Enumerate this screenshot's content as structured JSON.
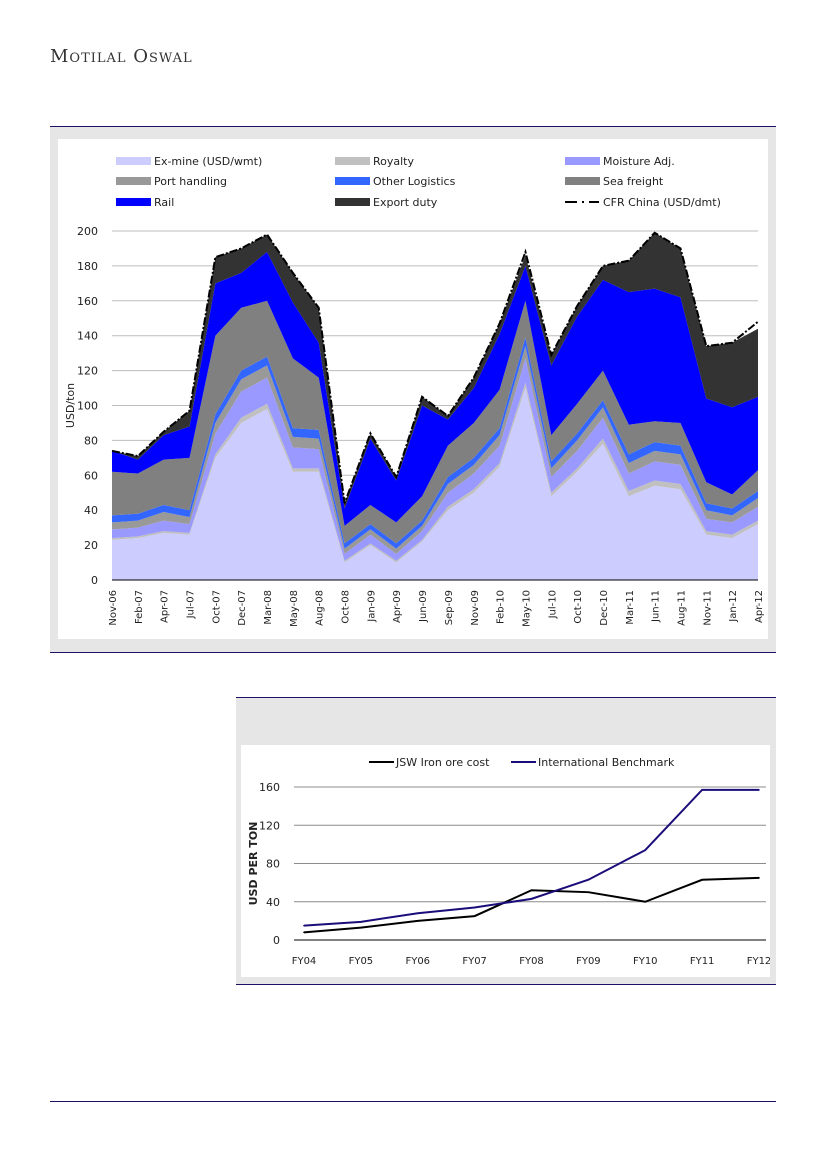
{
  "header": {
    "brand": "Motilal Oswal"
  },
  "chart_data": [
    {
      "type": "area",
      "stacked": true,
      "title": "",
      "xlabel": "",
      "ylabel": "USD/ton",
      "ylim": [
        0,
        200
      ],
      "yticks": [
        0,
        20,
        40,
        60,
        80,
        100,
        120,
        140,
        160,
        180,
        200
      ],
      "grid": true,
      "legend_position": "top",
      "x_tick_labels": [
        "Nov-06",
        "Feb-07",
        "Apr-07",
        "Jul-07",
        "Oct-07",
        "Dec-07",
        "Mar-08",
        "May-08",
        "Aug-08",
        "Oct-08",
        "Jan-09",
        "Apr-09",
        "Jun-09",
        "Sep-09",
        "Nov-09",
        "Feb-10",
        "May-10",
        "Jul-10",
        "Oct-10",
        "Dec-10",
        "Mar-11",
        "Jun-11",
        "Aug-11",
        "Nov-11",
        "Jan-12",
        "Apr-12"
      ],
      "x": [
        "Nov-06",
        "Feb-07",
        "Apr-07",
        "Jul-07",
        "Oct-07",
        "Dec-07",
        "Mar-08",
        "May-08",
        "Aug-08",
        "Oct-08",
        "Jan-09",
        "Apr-09",
        "Jun-09",
        "Sep-09",
        "Nov-09",
        "Feb-10",
        "May-10",
        "Jul-10",
        "Oct-10",
        "Dec-10",
        "Mar-11",
        "Jun-11",
        "Aug-11",
        "Nov-11",
        "Jan-12",
        "Apr-12"
      ],
      "series": [
        {
          "name": "Ex-mine (USD/wmt)",
          "color": "#ccccff",
          "values": [
            23,
            24,
            27,
            26,
            70,
            90,
            98,
            62,
            62,
            10,
            20,
            10,
            22,
            40,
            50,
            65,
            110,
            48,
            62,
            78,
            48,
            54,
            52,
            26,
            24,
            32
          ]
        },
        {
          "name": "Royalty",
          "color": "#c0c0c0",
          "values": [
            1,
            1,
            1,
            1,
            2,
            3,
            3,
            2,
            2,
            1,
            1,
            1,
            1,
            2,
            2,
            2,
            3,
            2,
            2,
            3,
            3,
            3,
            3,
            2,
            2,
            2
          ]
        },
        {
          "name": "Moisture Adj.",
          "color": "#9999ff",
          "values": [
            5,
            5,
            6,
            5,
            12,
            15,
            15,
            12,
            11,
            4,
            5,
            4,
            5,
            8,
            9,
            10,
            14,
            9,
            10,
            12,
            10,
            11,
            11,
            7,
            7,
            8
          ]
        },
        {
          "name": "Port handling",
          "color": "#999999",
          "values": [
            4,
            4,
            5,
            4,
            6,
            7,
            7,
            6,
            6,
            3,
            3,
            3,
            3,
            5,
            5,
            6,
            7,
            5,
            6,
            6,
            6,
            6,
            6,
            5,
            4,
            5
          ]
        },
        {
          "name": "Other Logistics",
          "color": "#3366ff",
          "values": [
            4,
            4,
            4,
            4,
            5,
            5,
            5,
            5,
            5,
            3,
            3,
            3,
            3,
            4,
            4,
            4,
            5,
            4,
            4,
            4,
            5,
            5,
            5,
            4,
            4,
            4
          ]
        },
        {
          "name": "Sea freight",
          "color": "#808080",
          "values": [
            25,
            23,
            26,
            30,
            45,
            36,
            32,
            40,
            30,
            10,
            11,
            12,
            14,
            18,
            20,
            22,
            21,
            15,
            17,
            17,
            17,
            12,
            13,
            12,
            8,
            12
          ]
        },
        {
          "name": "Rail",
          "color": "#0000ff",
          "values": [
            12,
            8,
            14,
            18,
            30,
            20,
            28,
            32,
            20,
            10,
            38,
            24,
            52,
            15,
            20,
            32,
            20,
            40,
            50,
            52,
            76,
            76,
            72,
            48,
            50,
            42
          ]
        },
        {
          "name": "Export duty",
          "color": "#333333",
          "values": [
            0,
            2,
            2,
            9,
            15,
            14,
            10,
            17,
            20,
            3,
            3,
            2,
            5,
            2,
            6,
            6,
            6,
            6,
            6,
            8,
            18,
            32,
            28,
            30,
            37,
            39
          ]
        }
      ],
      "overlay_line": {
        "name": "CFR China (USD/dmt)",
        "style": "dash-dot",
        "color": "#000000",
        "values": [
          74,
          71,
          85,
          97,
          185,
          190,
          198,
          176,
          156,
          44,
          84,
          59,
          105,
          94,
          116,
          147,
          188,
          129,
          157,
          180,
          183,
          199,
          190,
          134,
          136,
          148
        ]
      }
    },
    {
      "type": "line",
      "title": "",
      "xlabel": "",
      "ylabel": "USD PER TON",
      "ylim": [
        0,
        160
      ],
      "yticks": [
        0,
        40,
        80,
        120,
        160
      ],
      "grid": true,
      "legend_position": "top",
      "categories": [
        "FY04",
        "FY05",
        "FY06",
        "FY07",
        "FY08",
        "FY09",
        "FY10",
        "FY11",
        "FY12"
      ],
      "series": [
        {
          "name": "JSW Iron ore cost",
          "color": "#000000",
          "values": [
            8,
            13,
            20,
            25,
            52,
            50,
            40,
            63,
            65
          ]
        },
        {
          "name": "International Benchmark",
          "color": "#1a0d7a",
          "values": [
            15,
            19,
            28,
            34,
            43,
            63,
            94,
            157,
            157
          ]
        }
      ]
    }
  ]
}
